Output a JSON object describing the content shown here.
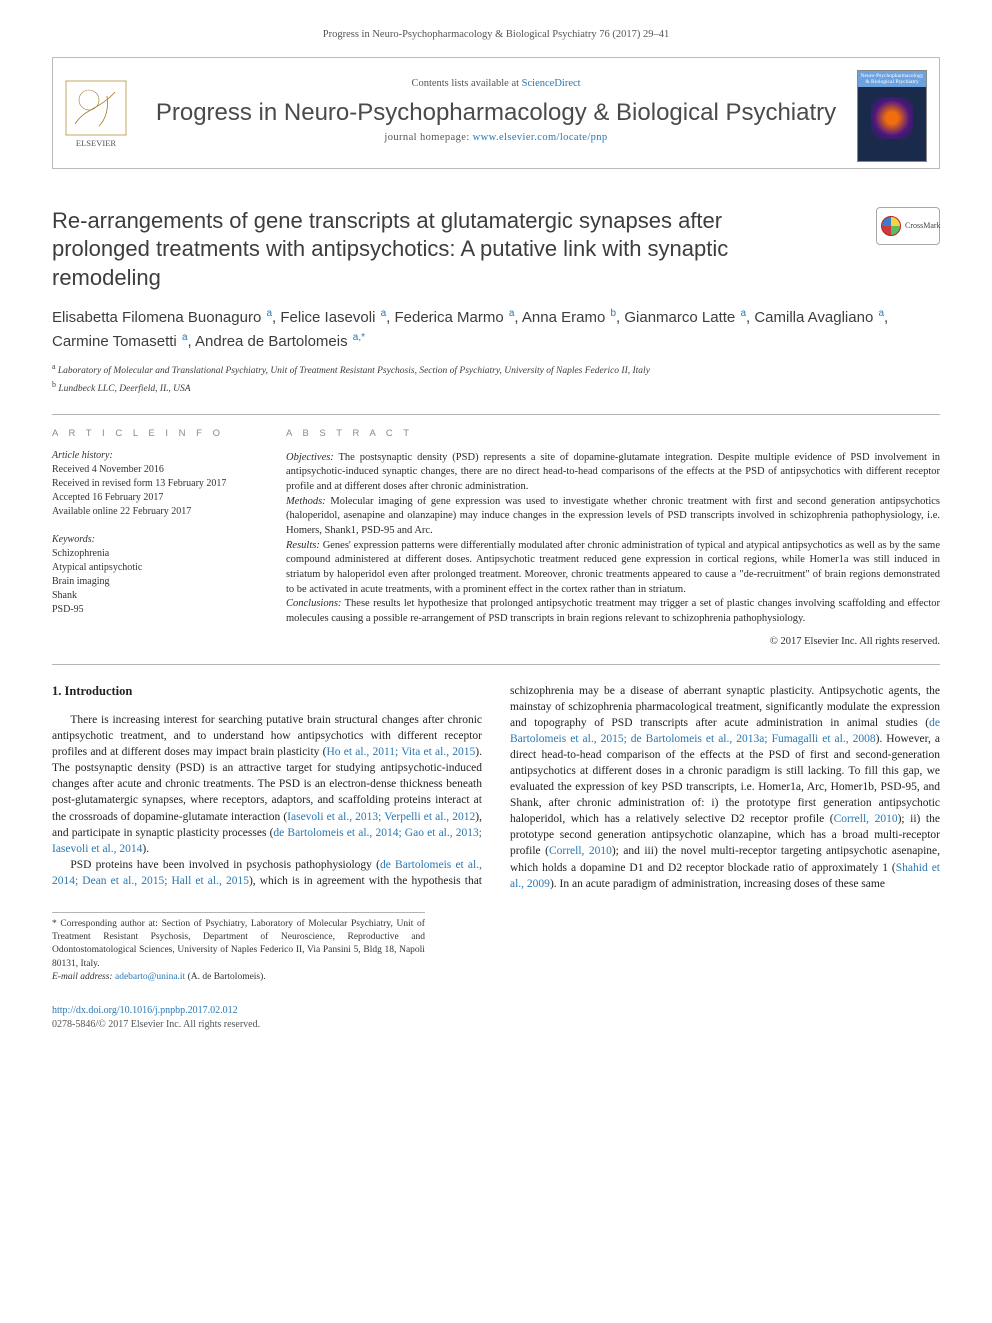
{
  "top_link": {
    "prefix": "Progress in Neuro-Psychopharmacology & Biological Psychiatry 76 (2017) 29–41"
  },
  "header": {
    "contents_prefix": "Contents lists available at ",
    "contents_link": "ScienceDirect",
    "journal_name": "Progress in Neuro-Psychopharmacology & Biological Psychiatry",
    "homepage_prefix": "journal homepage: ",
    "homepage_url": "www.elsevier.com/locate/pnp",
    "cover_label": "Neuro-Psychopharmacology & Biological Psychiatry"
  },
  "title": "Re-arrangements of gene transcripts at glutamatergic synapses after prolonged treatments with antipsychotics: A putative link with synaptic remodeling",
  "crossmark": "CrossMark",
  "authors_html": "Elisabetta Filomena Buonaguro <sup>a</sup>, Felice Iasevoli <sup>a</sup>, Federica Marmo <sup>a</sup>, Anna Eramo <sup>b</sup>, Gianmarco Latte <sup>a</sup>, Camilla Avagliano <sup>a</sup>, Carmine Tomasetti <sup>a</sup>, Andrea de Bartolomeis <sup>a,*</sup>",
  "affiliations": [
    {
      "sup": "a",
      "text": "Laboratory of Molecular and Translational Psychiatry, Unit of Treatment Resistant Psychosis, Section of Psychiatry, University of Naples Federico II, Italy"
    },
    {
      "sup": "b",
      "text": "Lundbeck LLC, Deerfield, IL, USA"
    }
  ],
  "article_info": {
    "heading": "A R T I C L E   I N F O",
    "history_label": "Article history:",
    "history": [
      "Received 4 November 2016",
      "Received in revised form 13 February 2017",
      "Accepted 16 February 2017",
      "Available online 22 February 2017"
    ],
    "keywords_label": "Keywords:",
    "keywords": [
      "Schizophrenia",
      "Atypical antipsychotic",
      "Brain imaging",
      "Shank",
      "PSD-95"
    ]
  },
  "abstract": {
    "heading": "A B S T R A C T",
    "objectives_label": "Objectives:",
    "objectives": "The postsynaptic density (PSD) represents a site of dopamine-glutamate integration. Despite multiple evidence of PSD involvement in antipsychotic-induced synaptic changes, there are no direct head-to-head comparisons of the effects at the PSD of antipsychotics with different receptor profile and at different doses after chronic administration.",
    "methods_label": "Methods:",
    "methods": "Molecular imaging of gene expression was used to investigate whether chronic treatment with first and second generation antipsychotics (haloperidol, asenapine and olanzapine) may induce changes in the expression levels of PSD transcripts involved in schizophrenia pathophysiology, i.e. Homers, Shank1, PSD-95 and Arc.",
    "results_label": "Results:",
    "results": "Genes' expression patterns were differentially modulated after chronic administration of typical and atypical antipsychotics as well as by the same compound administered at different doses. Antipsychotic treatment reduced gene expression in cortical regions, while Homer1a was still induced in striatum by haloperidol even after prolonged treatment. Moreover, chronic treatments appeared to cause a \"de-recruitment\" of brain regions demonstrated to be activated in acute treatments, with a prominent effect in the cortex rather than in striatum.",
    "conclusions_label": "Conclusions:",
    "conclusions": "These results let hypothesize that prolonged antipsychotic treatment may trigger a set of plastic changes involving scaffolding and effector molecules causing a possible re-arrangement of PSD transcripts in brain regions relevant to schizophrenia pathophysiology.",
    "copyright": "© 2017 Elsevier Inc. All rights reserved."
  },
  "intro": {
    "heading": "1. Introduction",
    "p1_pre": "There is increasing interest for searching putative brain structural changes after chronic antipsychotic treatment, and to understand how antipsychotics with different receptor profiles and at different doses may impact brain plasticity (",
    "p1_cite1": "Ho et al., 2011; Vita et al., 2015",
    "p1_mid1": "). The postsynaptic density (PSD) is an attractive target for studying antipsychotic-induced changes after acute and chronic treatments. The PSD is an electron-dense thickness beneath post-glutamatergic synapses, where receptors, adaptors, and scaffolding proteins interact at the crossroads of dopamine-glutamate interaction (",
    "p1_cite2": "Iasevoli et al., 2013; Verpelli et al., 2012",
    "p1_mid2": "), and participate in synaptic plasticity processes (",
    "p1_cite3": "de Bartolomeis et al., 2014; Gao et al., 2013; Iasevoli et al., 2014",
    "p1_end": ").",
    "p2_pre": "PSD proteins have been involved in psychosis pathophysiology (",
    "p2_cite1": "de Bartolomeis et al., 2014; Dean et al., 2015; Hall et al., 2015",
    "p2_mid1": "), which is in agreement with the hypothesis that schizophrenia may be a disease of aberrant synaptic plasticity. Antipsychotic agents, the mainstay of schizophrenia pharmacological treatment, significantly modulate the expression and topography of PSD transcripts after acute administration in animal studies (",
    "p2_cite2": "de Bartolomeis et al., 2015; de Bartolomeis et al., 2013a; Fumagalli et al., 2008",
    "p2_mid2": "). However, a direct head-to-head comparison of the effects at the PSD of first and second-generation antipsychotics at different doses in a chronic paradigm is still lacking. To fill this gap, we evaluated the expression of key PSD transcripts, i.e. Homer1a, Arc, Homer1b, PSD-95, and Shank, after chronic administration of: i) the prototype first generation antipsychotic haloperidol, which has a relatively selective D2 receptor profile (",
    "p2_cite3": "Correll, 2010",
    "p2_mid3": "); ii) the prototype second generation antipsychotic olanzapine, which has a broad multi-receptor profile (",
    "p2_cite4": "Correll, 2010",
    "p2_mid4": "); and iii) the novel multi-receptor targeting antipsychotic asenapine, which holds a dopamine D1 and D2 receptor blockade ratio of approximately 1 (",
    "p2_cite5": "Shahid et al., 2009",
    "p2_end": "). In an acute paradigm of administration, increasing doses of these same"
  },
  "corresp": {
    "star": "*",
    "text": "Corresponding author at: Section of Psychiatry, Laboratory of Molecular Psychiatry, Unit of Treatment Resistant Psychosis, Department of Neuroscience, Reproductive and Odontostomatological Sciences, University of Naples Federico II, Via Pansini 5, Bldg 18, Napoli 80131, Italy.",
    "email_label": "E-mail address:",
    "email": "adebarto@unina.it",
    "email_person": "(A. de Bartolomeis)."
  },
  "footer": {
    "doi": "http://dx.doi.org/10.1016/j.pnpbp.2017.02.012",
    "issn": "0278-5846/© 2017 Elsevier Inc. All rights reserved."
  },
  "colors": {
    "link": "#2878b5",
    "text": "#222222",
    "muted": "#8a8a8a",
    "rule": "#b4b4b4"
  }
}
